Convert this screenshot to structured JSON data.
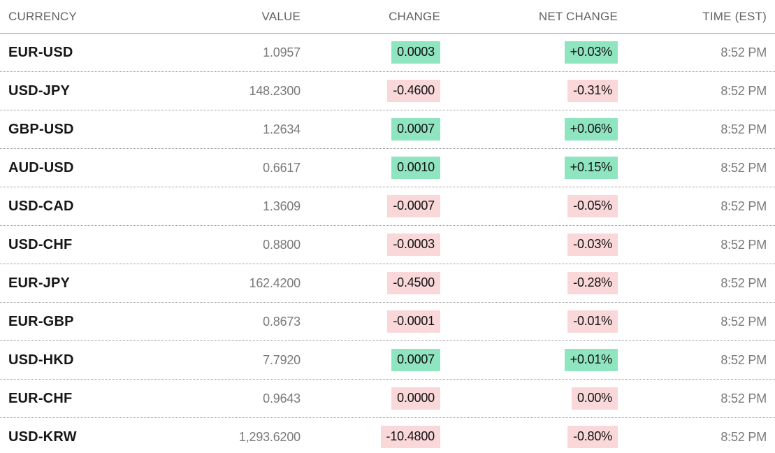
{
  "chart_data": {
    "type": "table",
    "columns": [
      "CURRENCY",
      "VALUE",
      "CHANGE",
      "NET CHANGE",
      "TIME (EST)"
    ],
    "rows": [
      {
        "currency": "EUR-USD",
        "value": "1.0957",
        "change": "0.0003",
        "net_change": "+0.03%",
        "time": "8:52 PM",
        "direction": "up"
      },
      {
        "currency": "USD-JPY",
        "value": "148.2300",
        "change": "-0.4600",
        "net_change": "-0.31%",
        "time": "8:52 PM",
        "direction": "down"
      },
      {
        "currency": "GBP-USD",
        "value": "1.2634",
        "change": "0.0007",
        "net_change": "+0.06%",
        "time": "8:52 PM",
        "direction": "up"
      },
      {
        "currency": "AUD-USD",
        "value": "0.6617",
        "change": "0.0010",
        "net_change": "+0.15%",
        "time": "8:52 PM",
        "direction": "up"
      },
      {
        "currency": "USD-CAD",
        "value": "1.3609",
        "change": "-0.0007",
        "net_change": "-0.05%",
        "time": "8:52 PM",
        "direction": "down"
      },
      {
        "currency": "USD-CHF",
        "value": "0.8800",
        "change": "-0.0003",
        "net_change": "-0.03%",
        "time": "8:52 PM",
        "direction": "down"
      },
      {
        "currency": "EUR-JPY",
        "value": "162.4200",
        "change": "-0.4500",
        "net_change": "-0.28%",
        "time": "8:52 PM",
        "direction": "down"
      },
      {
        "currency": "EUR-GBP",
        "value": "0.8673",
        "change": "-0.0001",
        "net_change": "-0.01%",
        "time": "8:52 PM",
        "direction": "down"
      },
      {
        "currency": "USD-HKD",
        "value": "7.7920",
        "change": "0.0007",
        "net_change": "+0.01%",
        "time": "8:52 PM",
        "direction": "up"
      },
      {
        "currency": "EUR-CHF",
        "value": "0.9643",
        "change": "0.0000",
        "net_change": "0.00%",
        "time": "8:52 PM",
        "direction": "down"
      },
      {
        "currency": "USD-KRW",
        "value": "1,293.6200",
        "change": "-10.4800",
        "net_change": "-0.80%",
        "time": "8:52 PM",
        "direction": "down"
      }
    ],
    "colors": {
      "positive_bg": "#90e5c1",
      "negative_bg": "#fad8da",
      "ticker_text": "#161616",
      "muted_text": "#7a7a7a",
      "header_text": "#636363",
      "badge_text": "#111111"
    },
    "layout": {
      "grid": "off",
      "row_separator": "dotted",
      "header_separator": "solid"
    }
  }
}
